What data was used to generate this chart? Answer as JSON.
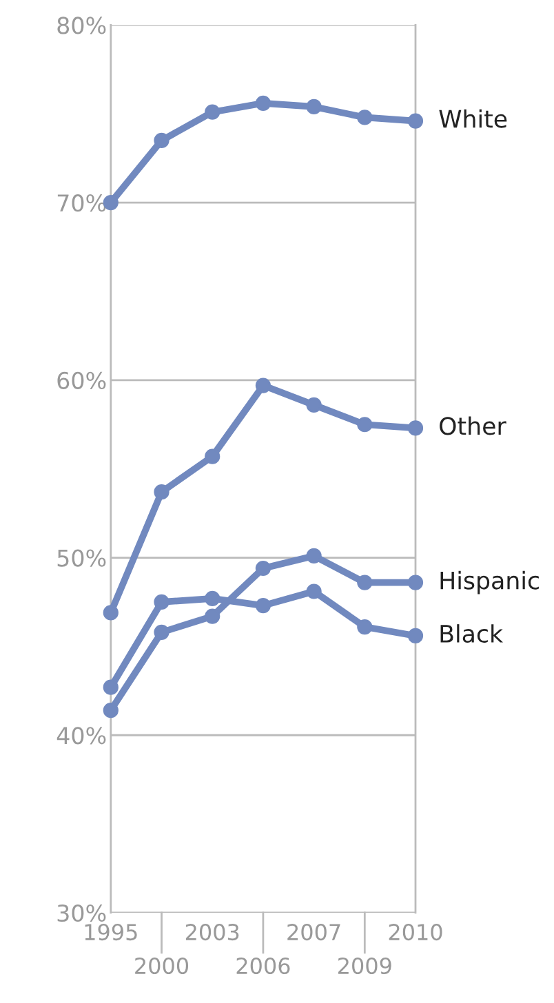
{
  "chart_data": {
    "type": "line",
    "categories": [
      "1995",
      "2000",
      "2003",
      "2006",
      "2007",
      "2009",
      "2010"
    ],
    "series": [
      {
        "name": "White",
        "color": "#7189bf",
        "values": [
          70.0,
          73.5,
          75.1,
          75.6,
          75.4,
          74.8,
          74.6
        ]
      },
      {
        "name": "Other",
        "color": "#7189bf",
        "values": [
          46.9,
          53.7,
          55.7,
          59.7,
          58.6,
          57.5,
          57.3
        ]
      },
      {
        "name": "Hispanic",
        "color": "#7189bf",
        "values": [
          41.4,
          45.8,
          46.7,
          49.4,
          50.1,
          48.6,
          48.6
        ]
      },
      {
        "name": "Black",
        "color": "#7189bf",
        "values": [
          42.7,
          47.5,
          47.7,
          47.3,
          48.1,
          46.1,
          45.6
        ]
      }
    ],
    "ylim": [
      30,
      80
    ],
    "yticks": [
      {
        "value": 30,
        "label": "30%"
      },
      {
        "value": 40,
        "label": "40%"
      },
      {
        "value": 50,
        "label": "50%"
      },
      {
        "value": 60,
        "label": "60%"
      },
      {
        "value": 70,
        "label": "70%"
      },
      {
        "value": 80,
        "label": "80%"
      }
    ],
    "grid": "y",
    "marker": "circle",
    "line_style": "solid",
    "legend": false
  }
}
